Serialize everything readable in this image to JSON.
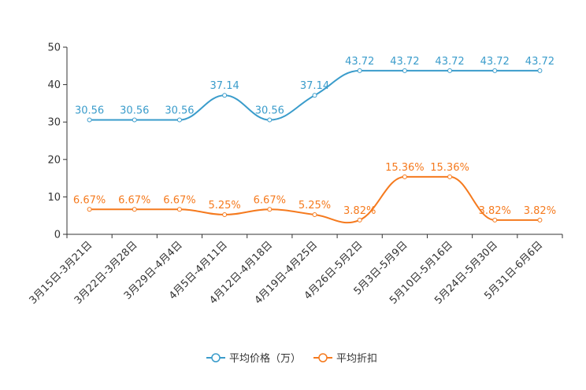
{
  "chart_data": {
    "type": "line",
    "title": "",
    "xlabel": "",
    "ylabel": "",
    "ylim": [
      0,
      50
    ],
    "yticks": [
      0,
      10,
      20,
      30,
      40,
      50
    ],
    "categories": [
      "3月15日-3月21日",
      "3月22日-3月28日",
      "3月29日-4月4日",
      "4月5日-4月11日",
      "4月12日-4月18日",
      "4月19日-4月25日",
      "4月26日-5月2日",
      "5月3日-5月9日",
      "5月10日-5月16日",
      "5月24日-5月30日",
      "5月31日-6月6日"
    ],
    "series": [
      {
        "name": "平均价格（万）",
        "color": "#3a9ccb",
        "values": [
          30.56,
          30.56,
          30.56,
          37.14,
          30.56,
          37.14,
          43.72,
          43.72,
          43.72,
          43.72,
          43.72
        ],
        "labels": [
          "30.56",
          "30.56",
          "30.56",
          "37.14",
          "30.56",
          "37.14",
          "43.72",
          "43.72",
          "43.72",
          "43.72",
          "43.72"
        ]
      },
      {
        "name": "平均折扣",
        "color": "#f57a1e",
        "values": [
          6.67,
          6.67,
          6.67,
          5.25,
          6.67,
          5.25,
          3.82,
          15.36,
          15.36,
          3.82,
          3.82
        ],
        "labels": [
          "6.67%",
          "6.67%",
          "6.67%",
          "5.25%",
          "6.67%",
          "5.25%",
          "3.82%",
          "15.36%",
          "15.36%",
          "3.82%",
          "3.82%"
        ]
      }
    ],
    "legend_position": "bottom-center",
    "grid": false
  }
}
